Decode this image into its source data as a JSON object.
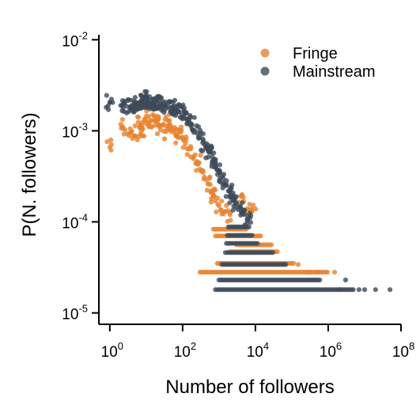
{
  "chart_data": {
    "type": "scatter",
    "title": "",
    "xlabel": "Number of followers",
    "ylabel": "P(N. followers)",
    "xscale": "log",
    "yscale": "log",
    "xlim": [
      0.5,
      100000000
    ],
    "ylim": [
      7.5e-06,
      0.015
    ],
    "grid": false,
    "legend_position": "top-right",
    "x_ticks": [
      {
        "base": "10",
        "exp": "0",
        "value": 1
      },
      {
        "base": "10",
        "exp": "2",
        "value": 100
      },
      {
        "base": "10",
        "exp": "4",
        "value": 10000
      },
      {
        "base": "10",
        "exp": "6",
        "value": 1000000
      },
      {
        "base": "10",
        "exp": "8",
        "value": 100000000
      }
    ],
    "y_ticks": [
      {
        "base": "10",
        "exp": "-5",
        "value": 1e-05
      },
      {
        "base": "10",
        "exp": "-4",
        "value": 0.0001
      },
      {
        "base": "10",
        "exp": "-3",
        "value": 0.001
      },
      {
        "base": "10",
        "exp": "-2",
        "value": 0.01
      }
    ],
    "series": [
      {
        "name": "Fringe",
        "color": "#E8822E",
        "points": [
          [
            1,
            0.00066
          ],
          [
            2,
            0.00118
          ],
          [
            3,
            0.00093
          ],
          [
            4,
            0.00099
          ],
          [
            5,
            0.00088
          ],
          [
            6,
            0.00124
          ],
          [
            7,
            0.00115
          ],
          [
            8,
            0.00105
          ],
          [
            10,
            0.00145
          ],
          [
            12,
            0.0012
          ],
          [
            14,
            0.0011
          ],
          [
            17,
            0.00135
          ],
          [
            20,
            0.00125
          ],
          [
            25,
            0.00102
          ],
          [
            30,
            0.00118
          ],
          [
            35,
            0.00098
          ],
          [
            40,
            0.0013
          ],
          [
            50,
            0.00109
          ],
          [
            60,
            0.00096
          ],
          [
            70,
            0.00088
          ],
          [
            80,
            0.00102
          ],
          [
            100,
            0.00085
          ],
          [
            120,
            0.00072
          ],
          [
            150,
            0.00063
          ],
          [
            200,
            0.00052
          ],
          [
            250,
            0.00046
          ],
          [
            300,
            0.00038
          ],
          [
            400,
            0.00031
          ],
          [
            500,
            0.00026
          ],
          [
            600,
            0.00021
          ],
          [
            700,
            0.00019
          ],
          [
            800,
            0.00017
          ],
          [
            1000,
            0.00015
          ],
          [
            1500,
            0.00013
          ],
          [
            2000,
            0.00012
          ],
          [
            4000,
            0.00019
          ],
          [
            6000,
            0.00014
          ],
          [
            8000,
            0.00013
          ]
        ],
        "tail_levels": [
          {
            "y": 2.8e-05,
            "x_from": 300,
            "x_to": 1000000
          },
          {
            "y": 3.5e-05,
            "x_from": 900,
            "x_to": 120000
          },
          {
            "y": 4.7e-05,
            "x_from": 2000,
            "x_to": 40000
          },
          {
            "y": 5.6e-05,
            "x_from": 3000,
            "x_to": 30000
          },
          {
            "y": 7e-05,
            "x_from": 800,
            "x_to": 15000
          },
          {
            "y": 8.3e-05,
            "x_from": 700,
            "x_to": 6000
          }
        ],
        "tail_points": [
          [
            300000,
            2.8e-05
          ],
          [
            500000,
            2.8e-05
          ],
          [
            1500000,
            2.8e-05
          ],
          [
            150000,
            3.4e-05
          ],
          [
            2000000,
            1.8e-05
          ]
        ]
      },
      {
        "name": "Mainstream",
        "color": "#3D4A59",
        "points": [
          [
            1,
            0.00205
          ],
          [
            2,
            0.0019
          ],
          [
            3,
            0.00185
          ],
          [
            4,
            0.0019
          ],
          [
            5,
            0.002
          ],
          [
            6,
            0.00185
          ],
          [
            7,
            0.0021
          ],
          [
            8,
            0.00205
          ],
          [
            9,
            0.00235
          ],
          [
            10,
            0.002
          ],
          [
            12,
            0.00215
          ],
          [
            14,
            0.0019
          ],
          [
            16,
            0.00205
          ],
          [
            20,
            0.00215
          ],
          [
            25,
            0.002
          ],
          [
            30,
            0.0019
          ],
          [
            40,
            0.00185
          ],
          [
            50,
            0.0018
          ],
          [
            60,
            0.00175
          ],
          [
            70,
            0.0017
          ],
          [
            80,
            0.00162
          ],
          [
            100,
            0.0015
          ],
          [
            130,
            0.00135
          ],
          [
            170,
            0.0012
          ],
          [
            220,
            0.001
          ],
          [
            300,
            0.00085
          ],
          [
            400,
            0.0007
          ],
          [
            500,
            0.0006
          ],
          [
            650,
            0.00052
          ],
          [
            800,
            0.00045
          ],
          [
            1000,
            0.00036
          ],
          [
            1300,
            0.0003
          ],
          [
            1600,
            0.00025
          ],
          [
            2000,
            0.00022
          ],
          [
            2500,
            0.00019
          ],
          [
            3000,
            0.00016
          ],
          [
            4000,
            0.00014
          ],
          [
            5000,
            0.00012
          ],
          [
            6000,
            0.000105
          ]
        ],
        "tail_levels": [
          {
            "y": 1.8e-05,
            "x_from": 800,
            "x_to": 5000000
          },
          {
            "y": 2.3e-05,
            "x_from": 1000,
            "x_to": 600000
          },
          {
            "y": 3.4e-05,
            "x_from": 1200,
            "x_to": 70000
          },
          {
            "y": 4.6e-05,
            "x_from": 1500,
            "x_to": 30000
          },
          {
            "y": 5.8e-05,
            "x_from": 1600,
            "x_to": 12000
          },
          {
            "y": 7.1e-05,
            "x_from": 1700,
            "x_to": 9000
          },
          {
            "y": 8.8e-05,
            "x_from": 1800,
            "x_to": 7000
          }
        ],
        "tail_points": [
          [
            10000000,
            1.8e-05
          ],
          [
            20000000,
            1.8e-05
          ],
          [
            50000000,
            1.8e-05
          ],
          [
            7000000,
            1.8e-05
          ],
          [
            3000000,
            2.3e-05
          ]
        ]
      }
    ]
  }
}
